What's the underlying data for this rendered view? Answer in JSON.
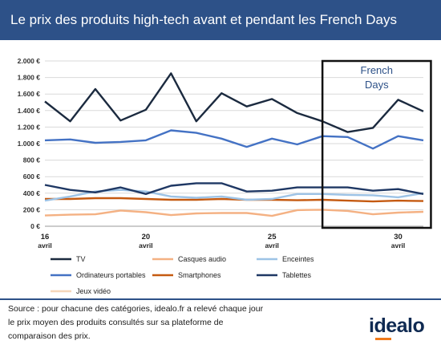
{
  "header": {
    "title": "Le prix des produits high-tech avant et pendant les French Days"
  },
  "chart_data": {
    "type": "line",
    "title": "Le prix des produits high-tech avant et pendant les French Days",
    "ylim": [
      0,
      2000
    ],
    "y_tick_values": [
      0,
      200,
      400,
      600,
      800,
      1000,
      1200,
      1400,
      1600,
      1800,
      2000
    ],
    "y_tick_labels": [
      "0 €",
      "200 €",
      "400 €",
      "600 €",
      "800 €",
      "1.000 €",
      "1.200 €",
      "1.400 €",
      "1.600 €",
      "1.800 €",
      "2.000 €"
    ],
    "x": [
      16,
      17,
      18,
      19,
      20,
      21,
      22,
      23,
      24,
      25,
      26,
      27,
      28,
      29,
      30,
      31
    ],
    "xlim": [
      16,
      31
    ],
    "x_ticks": [
      {
        "x": 16,
        "day": "16",
        "month": "avril"
      },
      {
        "x": 20,
        "day": "20",
        "month": "avril"
      },
      {
        "x": 25,
        "day": "25",
        "month": "avril"
      },
      {
        "x": 30,
        "day": "30",
        "month": "avril"
      }
    ],
    "grid": true,
    "legend_position": "bottom",
    "annotation": {
      "label_lines": [
        "French",
        "Days"
      ],
      "x_range": [
        27,
        31.3
      ]
    },
    "series": [
      {
        "name": "Jeux vidéo",
        "color": "#f5d6b9",
        "values": [
          null,
          null,
          null,
          null,
          null,
          null,
          null,
          null,
          null,
          null,
          null,
          null,
          null,
          null,
          null,
          null
        ]
      },
      {
        "name": "Casques audio",
        "color": "#f4b183",
        "values": [
          130,
          140,
          145,
          190,
          170,
          135,
          155,
          160,
          160,
          125,
          195,
          200,
          185,
          145,
          165,
          175
        ]
      },
      {
        "name": "Smartphones",
        "color": "#c55a11",
        "values": [
          330,
          330,
          340,
          340,
          330,
          320,
          320,
          330,
          320,
          320,
          315,
          320,
          310,
          300,
          310,
          305
        ]
      },
      {
        "name": "Enceintes",
        "color": "#9dc3e6",
        "values": [
          310,
          360,
          420,
          440,
          420,
          360,
          345,
          360,
          320,
          330,
          390,
          390,
          380,
          375,
          350,
          400
        ]
      },
      {
        "name": "Tablettes",
        "color": "#1f3864",
        "values": [
          500,
          440,
          410,
          470,
          390,
          490,
          520,
          520,
          420,
          430,
          470,
          470,
          470,
          430,
          450,
          390
        ]
      },
      {
        "name": "Ordinateurs portables",
        "color": "#4472c4",
        "values": [
          1040,
          1050,
          1010,
          1020,
          1040,
          1160,
          1130,
          1060,
          960,
          1060,
          990,
          1090,
          1080,
          940,
          1090,
          1040
        ]
      },
      {
        "name": "TV",
        "color": "#1b2a3f",
        "values": [
          1510,
          1270,
          1660,
          1280,
          1410,
          1850,
          1270,
          1610,
          1450,
          1540,
          1370,
          1270,
          1140,
          1190,
          1530,
          1390
        ]
      }
    ],
    "legend_order": [
      "TV",
      "Casques audio",
      "Enceintes",
      "Ordinateurs portables",
      "Smartphones",
      "Tablettes",
      "Jeux vidéo"
    ]
  },
  "footer": {
    "source_lines": [
      "Source :  pour chacune des catégories, idealo.fr a relevé chaque jour",
      "le prix moyen des produits consultés sur sa plateforme de",
      "comparaison des prix."
    ],
    "brand": "idealo",
    "brand_accent_color": "#f07a1a"
  }
}
